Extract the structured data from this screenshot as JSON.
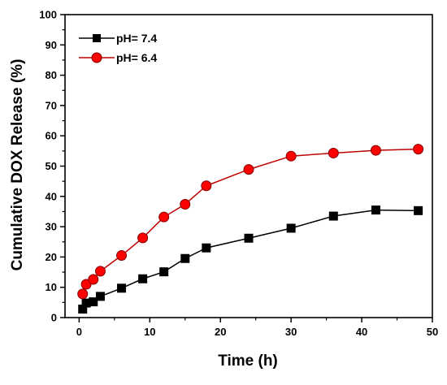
{
  "chart_data": {
    "type": "line",
    "xlabel": "Time (h)",
    "ylabel": "Cumulative DOX Release (%)",
    "xlim": [
      -2,
      50
    ],
    "ylim": [
      0,
      100
    ],
    "xticks": [
      0,
      10,
      20,
      30,
      40,
      50
    ],
    "yticks": [
      0,
      10,
      20,
      30,
      40,
      50,
      60,
      70,
      80,
      90,
      100
    ],
    "grid": false,
    "legend_position": "top-left",
    "series": [
      {
        "name": "pH= 7.4",
        "color": "#000000",
        "marker": "square",
        "x": [
          0.5,
          1,
          2,
          3,
          6,
          9,
          12,
          15,
          18,
          24,
          30,
          36,
          42,
          48
        ],
        "values": [
          2.8,
          4.8,
          5.2,
          7.0,
          9.7,
          12.8,
          15.1,
          19.5,
          23.0,
          26.2,
          29.5,
          33.5,
          35.5,
          35.3
        ]
      },
      {
        "name": "pH= 6.4",
        "color": "#ff0000",
        "line_color": "#c00000",
        "marker": "circle",
        "x": [
          0.5,
          1,
          2,
          3,
          6,
          9,
          12,
          15,
          18,
          24,
          30,
          36,
          42,
          48
        ],
        "values": [
          7.8,
          11.0,
          12.6,
          15.3,
          20.5,
          26.3,
          33.2,
          37.4,
          43.5,
          48.9,
          53.3,
          54.3,
          55.2,
          55.6
        ]
      }
    ]
  }
}
